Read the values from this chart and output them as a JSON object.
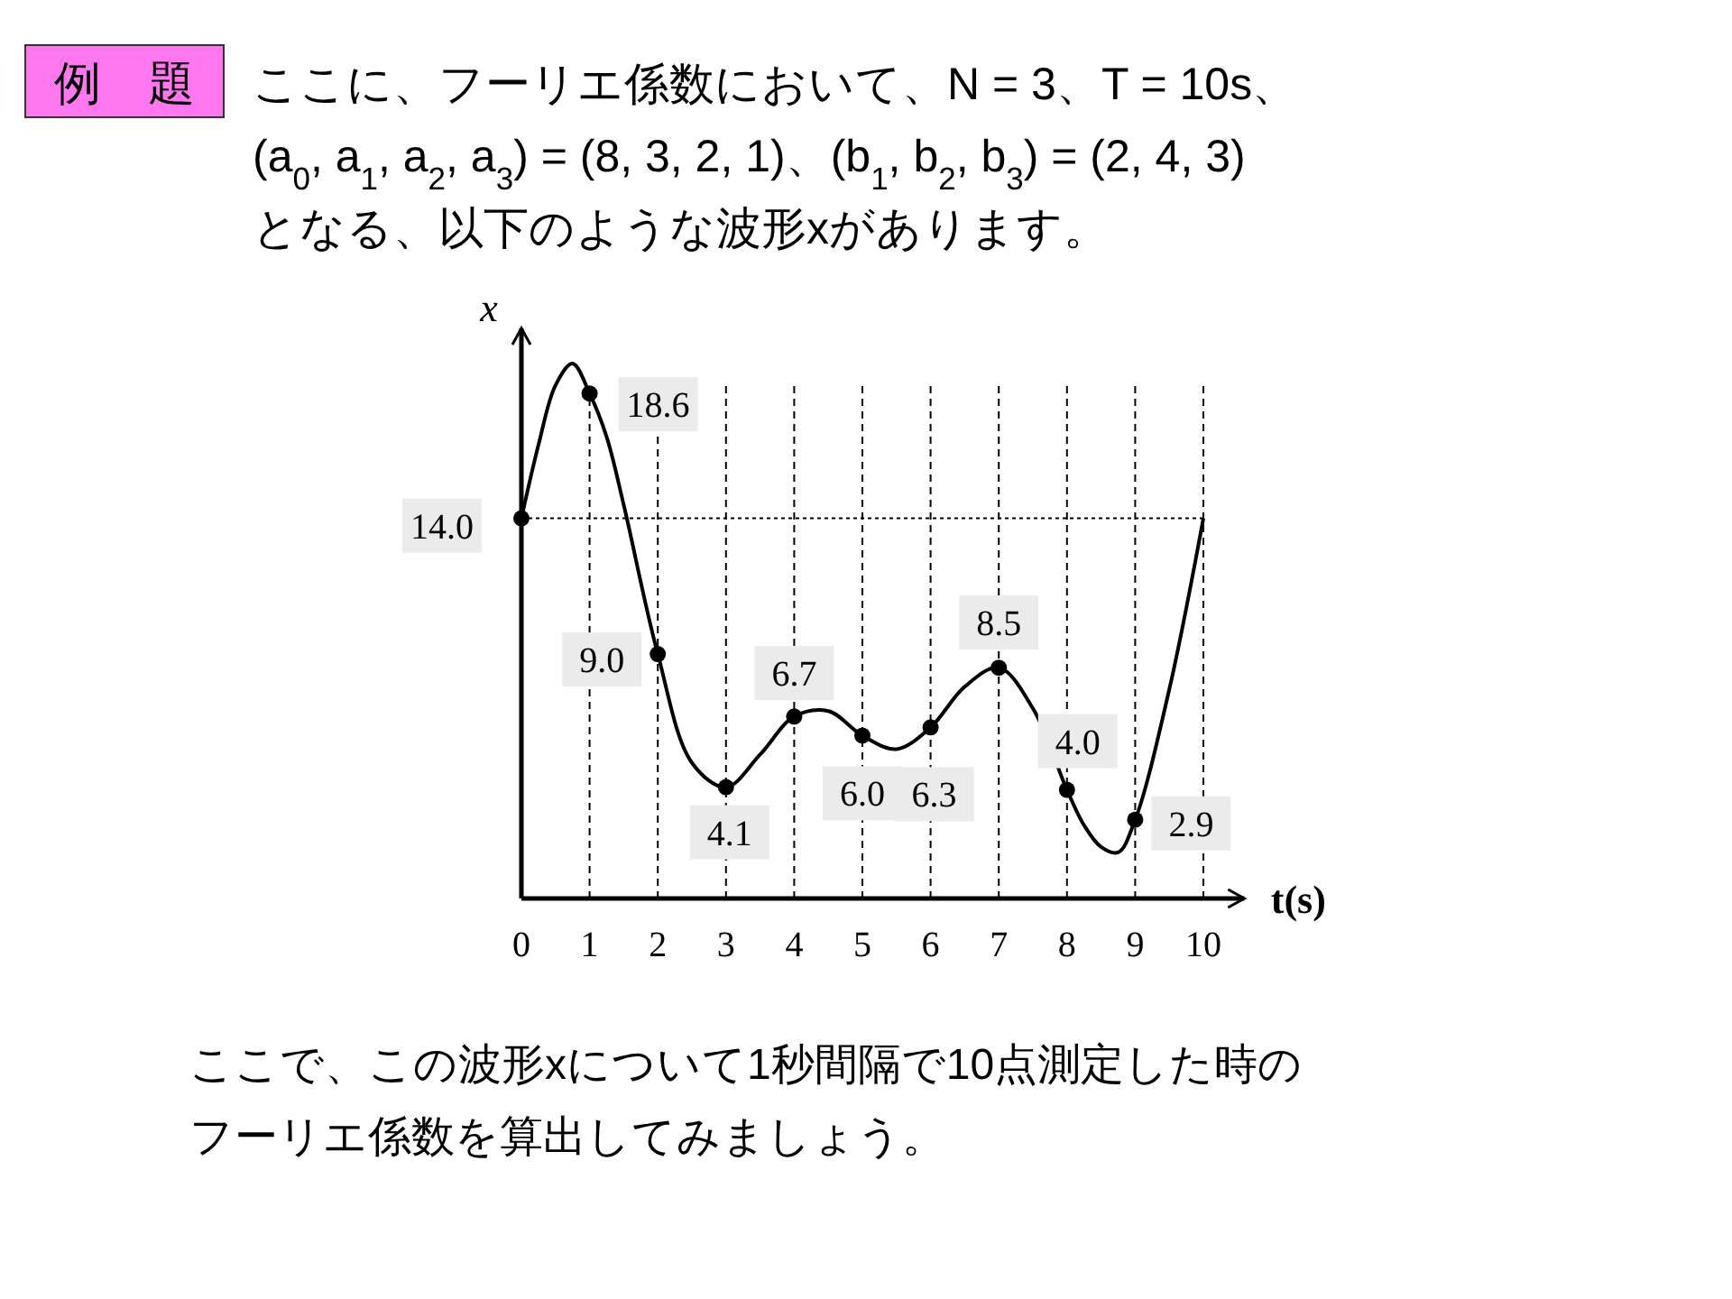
{
  "chart_data": {
    "type": "line",
    "title": "例　題",
    "subtitle": "ここに、フーリエ係数において、N = 3、T = 10s、\n(a$_{0}$, a$_{1}$, a$_{2}$, a$_{3}$) = (8, 3, 2, 1)、(b$_{1}$, b$_{2}$, b$_{3}$) = (2, 4, 3)\nとなる、以下のような波形xがあります。",
    "xlabel": "t(s)",
    "ylabel": "x",
    "annotations": [
      "ここで、この波形xについて1秒間隔で10点測定した時の",
      "フーリエ係数を算出してみましょう。"
    ],
    "xlim": [
      0,
      10.6
    ],
    "xticks": [
      0,
      1,
      2,
      3,
      4,
      5,
      6,
      7,
      8,
      9,
      10
    ],
    "ylim": [
      0,
      21
    ],
    "tick_labels": "x",
    "grid": "x",
    "ref_lines": [
      {
        "axis": "y",
        "value": 14,
        "line_style": "dotted"
      }
    ],
    "series": [
      {
        "color": "#000000",
        "marker": "none",
        "x": [
          0,
          0.25,
          0.5,
          0.75,
          1,
          1.25,
          1.5,
          2,
          2.5,
          3,
          3.5,
          4,
          4.5,
          5,
          5.5,
          6,
          6.5,
          7,
          7.5,
          8,
          8.25,
          8.5,
          8.75,
          9,
          9.5,
          10
        ],
        "values": [
          14.0,
          16.7,
          18.9,
          19.7,
          18.6,
          17.0,
          14.5,
          9.0,
          5.0,
          4.1,
          5.3,
          6.7,
          6.9,
          6.0,
          5.5,
          6.3,
          7.8,
          8.5,
          7.0,
          4.0,
          2.7,
          1.9,
          1.7,
          2.9,
          7.7,
          14.0
        ]
      },
      {
        "type": "scatter",
        "color": "#000000",
        "marker": "circle",
        "x": [
          0,
          1,
          2,
          3,
          4,
          5,
          6,
          7,
          8,
          9
        ],
        "values": [
          14.0,
          18.6,
          9.0,
          4.1,
          6.7,
          6.0,
          6.3,
          8.5,
          4.0,
          2.9
        ],
        "value_labels": [
          "14.0",
          "18.6",
          "9.0",
          "4.1",
          "6.7",
          "6.0",
          "6.3",
          "8.5",
          "4.0",
          "2.9"
        ]
      }
    ]
  }
}
